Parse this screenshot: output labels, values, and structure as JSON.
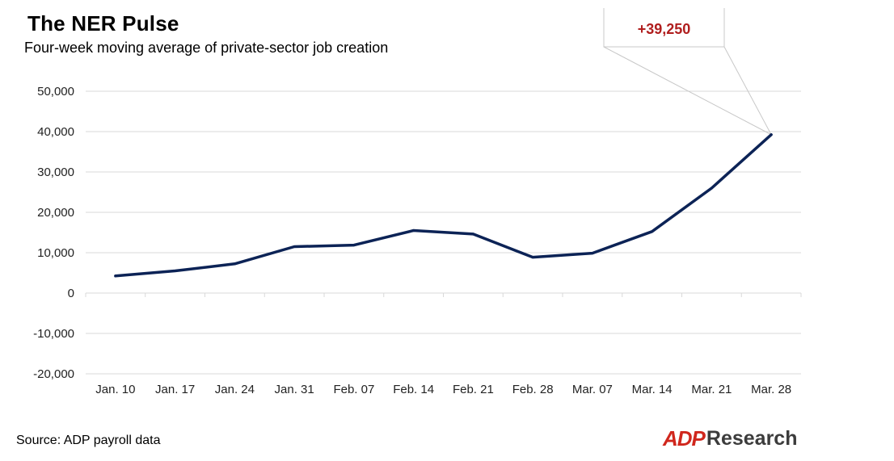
{
  "header": {
    "title": "The NER Pulse",
    "subtitle": "Four-week moving average of private-sector job creation"
  },
  "footer": {
    "source": "Source: ADP payroll data",
    "logo_mark": "ADP",
    "logo_text": "Research"
  },
  "chart_data": {
    "type": "line",
    "title": "The NER Pulse",
    "subtitle": "Four-week moving average of private-sector job creation",
    "xlabel": "",
    "ylabel": "",
    "categories": [
      "Jan. 10",
      "Jan. 17",
      "Jan. 24",
      "Jan. 31",
      "Feb. 07",
      "Feb. 14",
      "Feb. 21",
      "Feb. 28",
      "Mar. 07",
      "Mar. 14",
      "Mar. 21",
      "Mar. 28"
    ],
    "series": [
      {
        "values": [
          4250,
          5500,
          7250,
          11500,
          11875,
          15500,
          14625,
          8875,
          9875,
          15250,
          26000,
          39250
        ]
      }
    ],
    "yticks": [
      -20000,
      -10000,
      0,
      10000,
      20000,
      30000,
      40000,
      50000
    ],
    "ytick_labels": [
      "-20,000",
      "-10,000",
      "0",
      "10,000",
      "20,000",
      "30,000",
      "40,000",
      "50,000"
    ],
    "ylim": [
      -20000,
      50000
    ],
    "grid": true,
    "line_color": "#0c2356",
    "annotation": {
      "text": "+39,250",
      "target_category": "Mar. 28",
      "color": "#b01e1e"
    }
  }
}
